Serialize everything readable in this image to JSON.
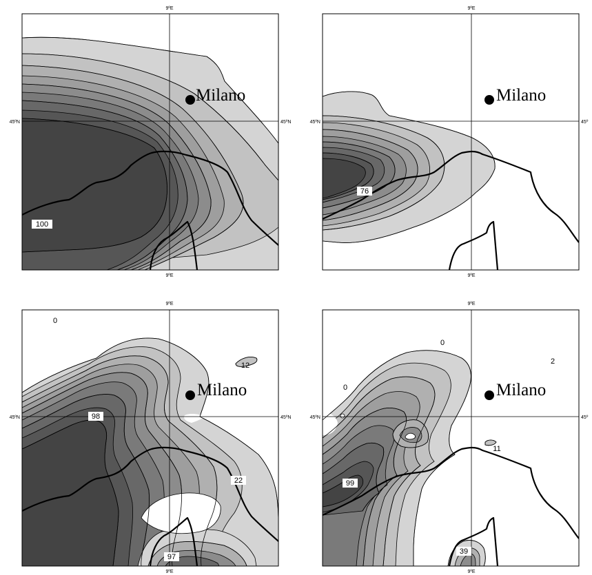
{
  "colors": {
    "shade_levels": [
      "#d4d4d4",
      "#c2c2c2",
      "#b0b0b0",
      "#9e9e9e",
      "#8c8c8c",
      "#7a7a7a",
      "#686868",
      "#565656",
      "#444444"
    ],
    "line": "#000000",
    "background": "#ffffff"
  },
  "panels": [
    {
      "id": "top-left",
      "top_label": "9ºE",
      "bottom_label": "9ºE",
      "left_label": "45ºN",
      "right_label": "45ºN",
      "city": "Milano",
      "contour_labels": [
        "100"
      ]
    },
    {
      "id": "top-right",
      "top_label": "9ºE",
      "bottom_label": "9ºE",
      "left_label": "45ºN",
      "right_label": "45º",
      "city": "Milano",
      "contour_labels": [
        "76"
      ]
    },
    {
      "id": "bottom-left",
      "top_label": "9ºE",
      "bottom_label": "9ºE",
      "left_label": "45ºN",
      "right_label": "45ºN",
      "city": "Milano",
      "contour_labels": [
        "0",
        "12",
        "98",
        "22",
        "97"
      ]
    },
    {
      "id": "bottom-right",
      "top_label": "9ºE",
      "bottom_label": "9ºE",
      "left_label": "45ºN",
      "right_label": "45º",
      "city": "Milano",
      "contour_labels": [
        "0",
        "2",
        "0",
        "11",
        "99",
        "39"
      ]
    }
  ]
}
